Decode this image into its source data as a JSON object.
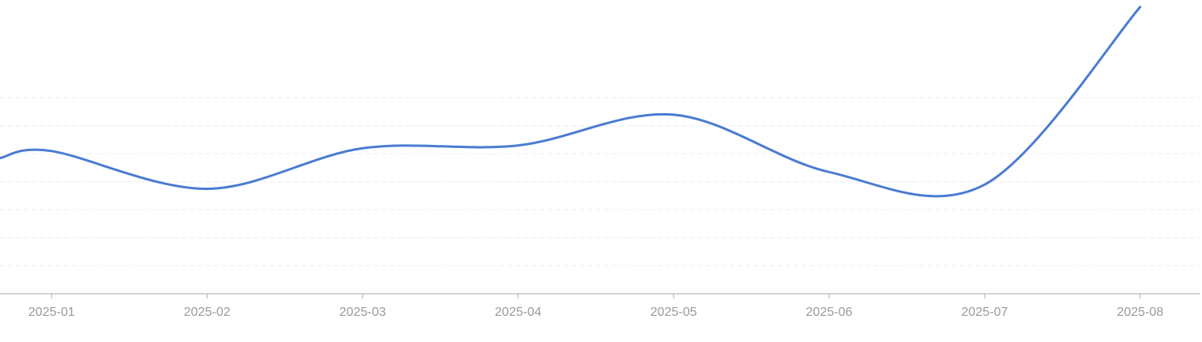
{
  "chart_data": {
    "type": "line",
    "x": [
      "2025-01",
      "2025-02",
      "2025-03",
      "2025-04",
      "2025-05",
      "2025-06",
      "2025-07",
      "2025-08"
    ],
    "series": [
      {
        "values": [
          102,
          75,
          104,
          106,
          128,
          87,
          78,
          205
        ]
      }
    ],
    "start_value": 97,
    "ylim": [
      0,
      210
    ],
    "grid": true,
    "grid_lines": [
      20,
      40,
      60,
      80,
      100,
      120,
      140
    ],
    "line_color": "#4a7bd1",
    "grid_color": "#eeeeee",
    "axis_color": "#b8b8b8",
    "tick_label_color": "#9a9a9a"
  }
}
